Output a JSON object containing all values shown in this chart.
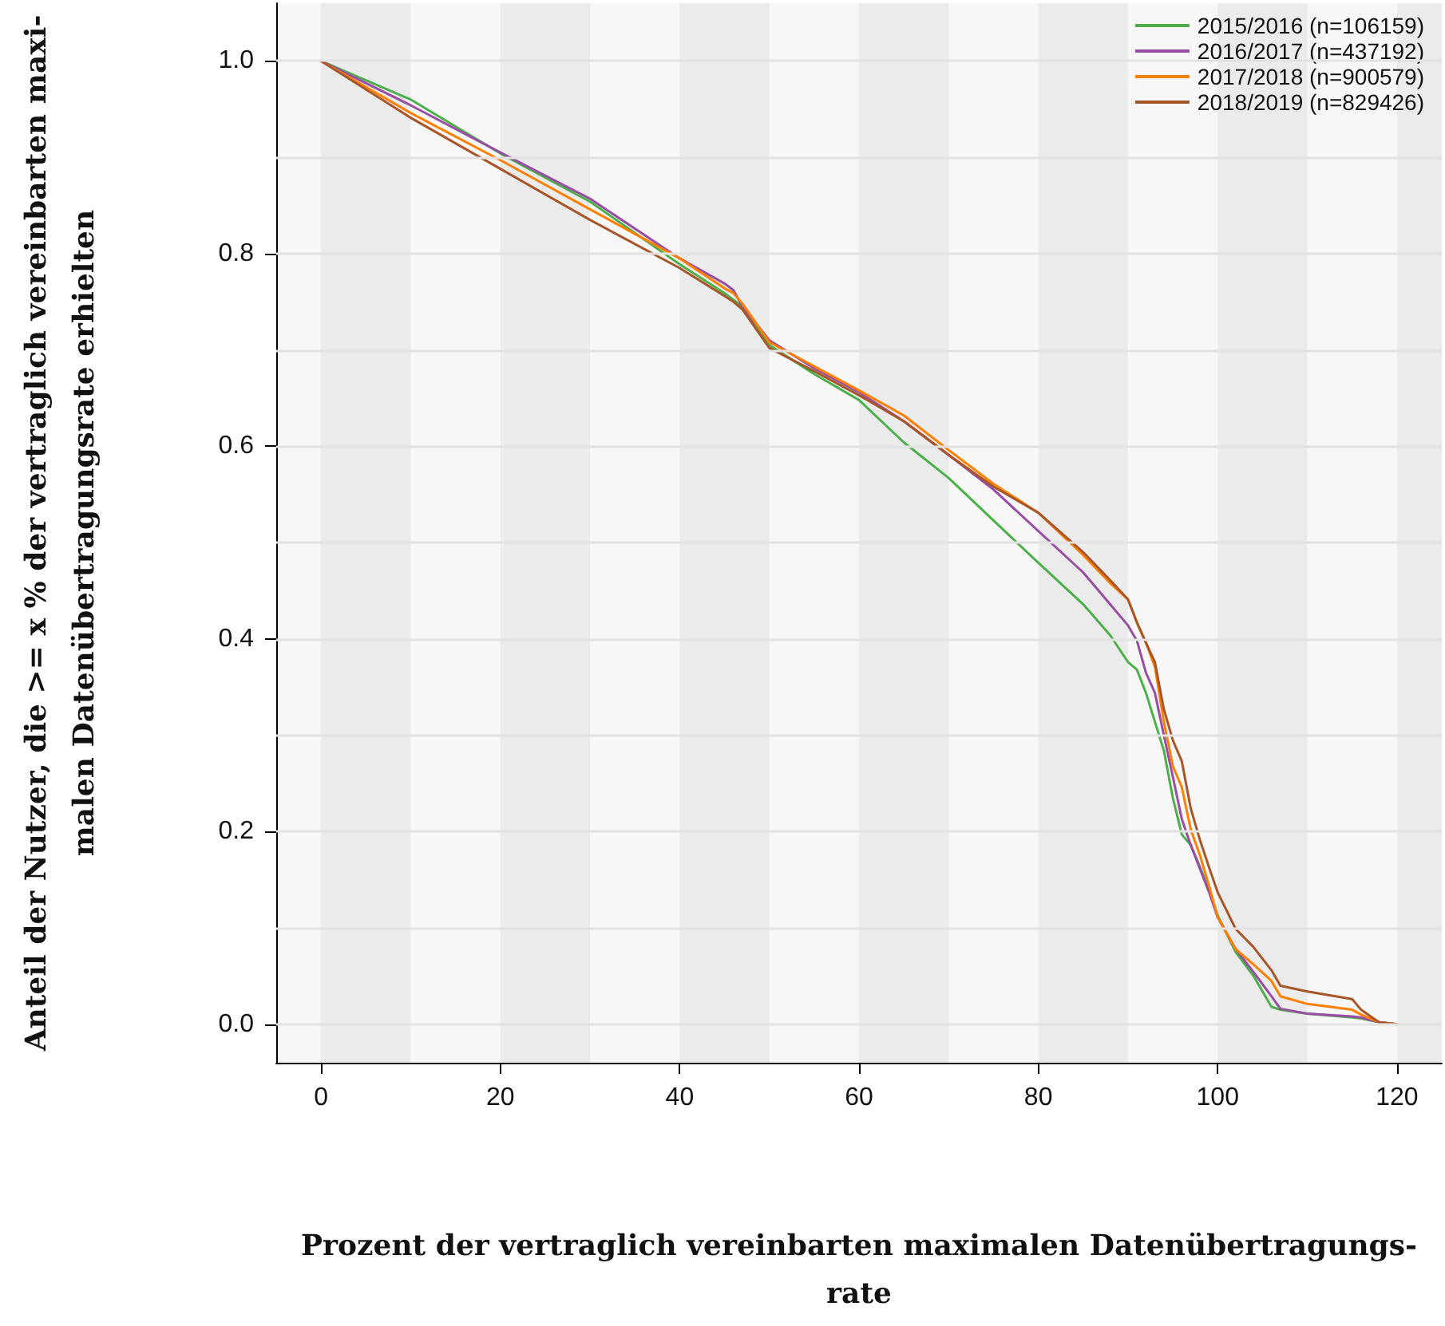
{
  "chart_data": {
    "type": "line",
    "xlabel": "Prozent der vertraglich vereinbarten maximalen Datenübertragungs-\nrate",
    "ylabel": "Anteil der Nutzer, die >= x % der vertraglich vereinbarten maxi-\nmalen Datenübertragungsrate erhielten",
    "x": [
      0,
      10,
      20,
      30,
      40,
      45,
      46,
      47,
      50,
      55,
      60,
      65,
      70,
      75,
      80,
      85,
      88,
      90,
      91,
      92,
      93,
      94,
      95,
      96,
      97,
      98,
      99,
      100,
      102,
      104,
      106,
      107,
      110,
      115,
      116,
      118,
      120
    ],
    "series": [
      {
        "name": "2015/2016 (n=106159)",
        "color": "#4daf4a",
        "values": [
          1,
          0.96,
          0.904,
          0.854,
          0.789,
          0.759,
          0.752,
          0.745,
          0.705,
          0.675,
          0.648,
          0.604,
          0.567,
          0.523,
          0.479,
          0.436,
          0.404,
          0.376,
          0.368,
          0.344,
          0.314,
          0.284,
          0.235,
          0.197,
          0.186,
          0.164,
          0.14,
          0.113,
          0.075,
          0.05,
          0.018,
          0.015,
          0.011,
          0.007,
          0.006,
          0.002,
          0
        ]
      },
      {
        "name": "2016/2017 (n=437192)",
        "color": "#984ea3",
        "values": [
          1,
          0.954,
          0.905,
          0.857,
          0.795,
          0.769,
          0.762,
          0.745,
          0.71,
          0.681,
          0.656,
          0.626,
          0.591,
          0.555,
          0.512,
          0.469,
          0.436,
          0.414,
          0.398,
          0.365,
          0.344,
          0.3,
          0.257,
          0.213,
          0.186,
          0.162,
          0.138,
          0.111,
          0.078,
          0.054,
          0.029,
          0.016,
          0.011,
          0.008,
          0.007,
          0.002,
          0
        ]
      },
      {
        "name": "2017/2018 (n=900579)",
        "color": "#ff7f00",
        "values": [
          1,
          0.946,
          0.897,
          0.846,
          0.795,
          0.764,
          0.759,
          0.748,
          0.708,
          0.683,
          0.658,
          0.632,
          0.596,
          0.561,
          0.531,
          0.487,
          0.458,
          0.441,
          0.417,
          0.396,
          0.371,
          0.314,
          0.268,
          0.246,
          0.202,
          0.176,
          0.145,
          0.111,
          0.078,
          0.062,
          0.045,
          0.029,
          0.021,
          0.015,
          0.01,
          0.002,
          0
        ]
      },
      {
        "name": "2018/2019 (n=829426)",
        "color": "#a65628",
        "values": [
          1,
          0.941,
          0.888,
          0.835,
          0.785,
          0.756,
          0.75,
          0.742,
          0.702,
          0.678,
          0.653,
          0.626,
          0.591,
          0.558,
          0.531,
          0.49,
          0.461,
          0.441,
          0.417,
          0.396,
          0.376,
          0.327,
          0.295,
          0.273,
          0.224,
          0.192,
          0.164,
          0.137,
          0.099,
          0.08,
          0.056,
          0.04,
          0.034,
          0.026,
          0.015,
          0.002,
          0
        ]
      }
    ],
    "xlim": [
      -5,
      125
    ],
    "xticks": [
      0,
      20,
      40,
      60,
      80,
      100,
      120
    ],
    "ylim": [
      -0.04,
      1.06
    ],
    "yticks": [
      {
        "value": 0,
        "label": "0.0"
      },
      {
        "value": 0.2,
        "label": "0.2"
      },
      {
        "value": 0.4,
        "label": "0.4"
      },
      {
        "value": 0.6,
        "label": "0.6"
      },
      {
        "value": 0.8,
        "label": "0.8"
      },
      {
        "value": 1,
        "label": "1.0"
      }
    ],
    "bands": [
      {
        "axis": "x",
        "from": 0,
        "to": 10,
        "color": "#ebebeb"
      },
      {
        "axis": "x",
        "from": 20,
        "to": 30,
        "color": "#ebebeb"
      },
      {
        "axis": "x",
        "from": 40,
        "to": 50,
        "color": "#ebebeb"
      },
      {
        "axis": "x",
        "from": 60,
        "to": 70,
        "color": "#ebebeb"
      },
      {
        "axis": "x",
        "from": 80,
        "to": 90,
        "color": "#ebebeb"
      },
      {
        "axis": "x",
        "from": 100,
        "to": 110,
        "color": "#ebebeb"
      },
      {
        "axis": "x",
        "from": 120,
        "to": 125,
        "color": "#ebebeb"
      }
    ],
    "grid": "y",
    "legend": "top right",
    "line_style": "solid"
  }
}
